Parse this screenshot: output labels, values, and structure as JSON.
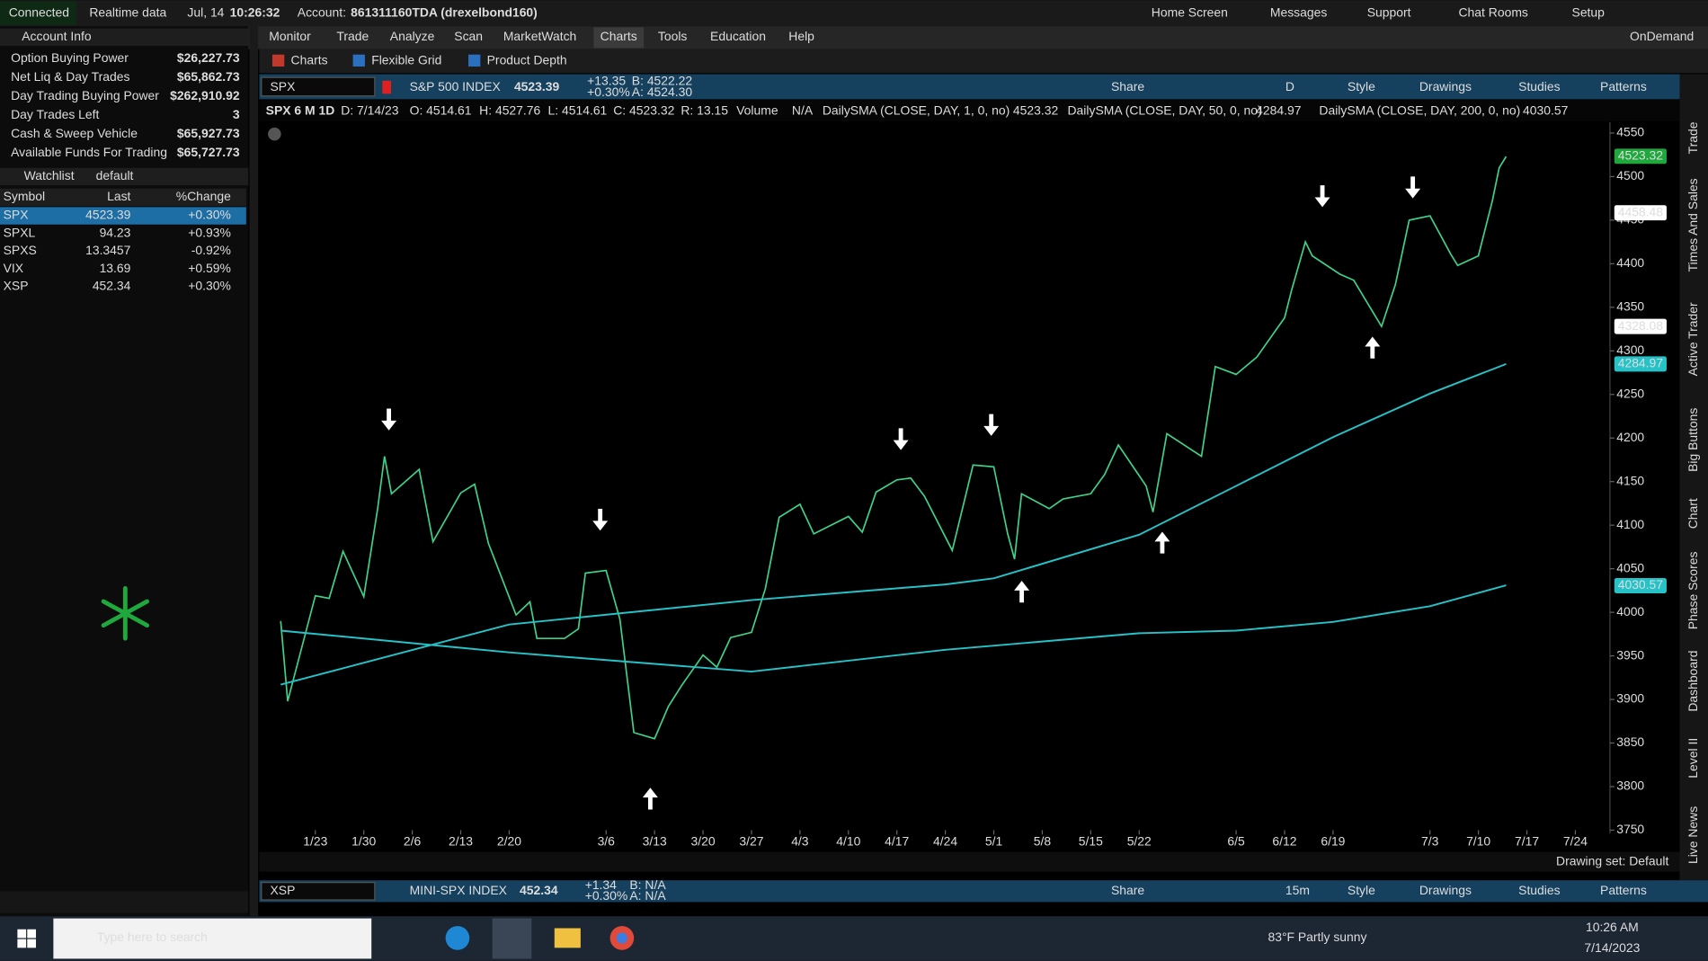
{
  "status_bar": {
    "connected": "Connected",
    "feed": "Realtime data",
    "date": "Jul, 14",
    "time": "10:26:32",
    "account_label": "Account:",
    "account": "861311160TDA (drexelbond160)",
    "links": [
      "Home Screen",
      "Messages",
      "Support",
      "Chat Rooms",
      "Setup"
    ]
  },
  "menu": {
    "items": [
      "Monitor",
      "Trade",
      "Analyze",
      "Scan",
      "MarketWatch",
      "Charts",
      "Tools",
      "Education",
      "Help"
    ],
    "ondemand": "OnDemand",
    "subtabs": [
      "Charts",
      "Flexible Grid",
      "Product Depth"
    ]
  },
  "account_info": {
    "title": "Account Info",
    "rows": [
      [
        "Option Buying Power",
        "$26,227.73"
      ],
      [
        "Net Liq & Day Trades",
        "$65,862.73"
      ],
      [
        "Day Trading Buying Power",
        "$262,910.92"
      ],
      [
        "Day Trades Left",
        "3"
      ],
      [
        "Cash & Sweep Vehicle",
        "$65,927.73"
      ],
      [
        "Available Funds For Trading",
        "$65,727.73"
      ]
    ]
  },
  "watchlist": {
    "title": "Watchlist",
    "name": "default",
    "headers": [
      "Symbol",
      "Last",
      "%Change"
    ],
    "rows": [
      [
        "SPX",
        "4523.39",
        "+0.30%"
      ],
      [
        "SPXL",
        "94.23",
        "+0.93%"
      ],
      [
        "SPXS",
        "13.3457",
        "-0.92%"
      ],
      [
        "VIX",
        "13.69",
        "+0.59%"
      ],
      [
        "XSP",
        "452.34",
        "+0.30%"
      ]
    ]
  },
  "chart_header": {
    "symbol": "SPX",
    "description": "S&P 500 INDEX",
    "last": "4523.39",
    "change": "+13.35",
    "change_pct": "+0.30%",
    "bid": "B: 4522.22",
    "ask": "A: 4524.30",
    "tools": [
      "Share",
      "D",
      "Style",
      "Drawings",
      "Studies",
      "Patterns"
    ]
  },
  "study_line": {
    "title": "SPX 6 M 1D",
    "items": [
      "D: 7/14/23",
      "O: 4514.61",
      "H: 4527.76",
      "L: 4514.61",
      "C: 4523.32",
      "R: 13.15"
    ],
    "volume": "Volume",
    "volume_value": "N/A"
  },
  "chart_data": {
    "type": "line",
    "xlim": [
      "1/16",
      "7/29"
    ],
    "xticks": [
      "1/23",
      "1/30",
      "2/6",
      "2/13",
      "2/20",
      "3/6",
      "3/13",
      "3/20",
      "3/27",
      "4/3",
      "4/10",
      "4/17",
      "4/24",
      "5/1",
      "5/8",
      "5/15",
      "5/22",
      "6/5",
      "6/12",
      "6/19",
      "7/3",
      "7/10",
      "7/17",
      "7/24"
    ],
    "ylim": [
      3750,
      4565
    ],
    "yticks": [
      3750,
      3800,
      3850,
      3900,
      3950,
      4000,
      4050,
      4100,
      4150,
      4200,
      4250,
      4300,
      4350,
      4400,
      4450,
      4500,
      4550
    ],
    "grid": false,
    "series": [
      {
        "name": "DailySMA (CLOSE, DAY, 1, 0, no)",
        "color": "#3fd08a",
        "x": [
          "1/18",
          "1/19",
          "1/23",
          "1/25",
          "1/27",
          "1/30",
          "2/1",
          "2/2",
          "2/3",
          "2/7",
          "2/9",
          "2/13",
          "2/15",
          "2/17",
          "2/21",
          "2/23",
          "2/24",
          "2/28",
          "3/2",
          "3/3",
          "3/6",
          "3/8",
          "3/10",
          "3/13",
          "3/15",
          "3/17",
          "3/20",
          "3/22",
          "3/24",
          "3/27",
          "3/29",
          "3/31",
          "4/3",
          "4/5",
          "4/10",
          "4/12",
          "4/14",
          "4/17",
          "4/19",
          "4/21",
          "4/25",
          "4/27",
          "4/28",
          "5/1",
          "5/3",
          "5/4",
          "5/5",
          "5/9",
          "5/11",
          "5/15",
          "5/17",
          "5/19",
          "5/23",
          "5/24",
          "5/26",
          "5/31",
          "6/2",
          "6/5",
          "6/8",
          "6/12",
          "6/13",
          "6/15",
          "6/16",
          "6/20",
          "6/22",
          "6/26",
          "6/28",
          "6/30",
          "7/3",
          "7/6",
          "7/7",
          "7/10",
          "7/12",
          "7/13",
          "7/14"
        ],
        "values": [
          3990,
          3898,
          4019,
          4016,
          4070,
          4018,
          4119,
          4179,
          4136,
          4164,
          4081,
          4137,
          4147,
          4079,
          3997,
          4012,
          3970,
          3970,
          3981,
          4045,
          4048,
          3992,
          3862,
          3855,
          3892,
          3917,
          3951,
          3937,
          3971,
          3977,
          4027,
          4109,
          4124,
          4090,
          4110,
          4092,
          4138,
          4152,
          4154,
          4133,
          4071,
          4136,
          4169,
          4167,
          4090,
          4061,
          4136,
          4119,
          4130,
          4136,
          4158,
          4192,
          4145,
          4115,
          4205,
          4179,
          4282,
          4273,
          4293,
          4338,
          4369,
          4425,
          4409,
          4388,
          4381,
          4328,
          4376,
          4450,
          4455,
          4411,
          4398,
          4409,
          4472,
          4510,
          4523
        ]
      },
      {
        "name": "DailySMA (CLOSE, DAY, 50, 0, no)",
        "color": "#25c2c8",
        "x": [
          "1/18",
          "2/20",
          "3/27",
          "4/24",
          "5/1",
          "5/22",
          "6/5",
          "6/19",
          "7/3",
          "7/14"
        ],
        "values": [
          3917,
          3986,
          4014,
          4032,
          4039,
          4089,
          4145,
          4201,
          4251,
          4285
        ]
      },
      {
        "name": "DailySMA (CLOSE, DAY, 200, 0, no)",
        "color": "#25c2c8",
        "x": [
          "1/18",
          "2/20",
          "3/27",
          "4/24",
          "5/22",
          "6/5",
          "6/19",
          "7/3",
          "7/14"
        ],
        "values": [
          3979,
          3954,
          3932,
          3957,
          3976,
          3979,
          3989,
          4007,
          4031
        ]
      }
    ],
    "price_markers": [
      {
        "value": 4523.32,
        "color": "#1fa83c"
      },
      {
        "value": 4458.48,
        "color": "#ffffff"
      },
      {
        "value": 4328.08,
        "color": "#ffffff"
      },
      {
        "value": 4284.97,
        "color": "#25c2c8"
      },
      {
        "value": 4030.57,
        "color": "#25c2c8"
      }
    ]
  },
  "side_tabs": [
    "Trade",
    "Times And Sales",
    "Active Trader",
    "Big Buttons",
    "Chart",
    "Phase Scores",
    "Dashboard",
    "Level II",
    "Live News"
  ],
  "drawing_set": "Drawing set: Default",
  "lower_chart": {
    "symbol": "XSP",
    "description": "MINI-SPX INDEX",
    "last": "452.34",
    "change": "+1.34",
    "change_pct": "+0.30%",
    "bid": "B: N/A",
    "ask": "A: N/A",
    "tools": [
      "Share",
      "15m",
      "Style",
      "Drawings",
      "Studies",
      "Patterns"
    ]
  },
  "taskbar": {
    "search": "Type here to search",
    "weather": "83°F Partly sunny",
    "time": "10:26 AM",
    "date": "7/14/2023"
  }
}
